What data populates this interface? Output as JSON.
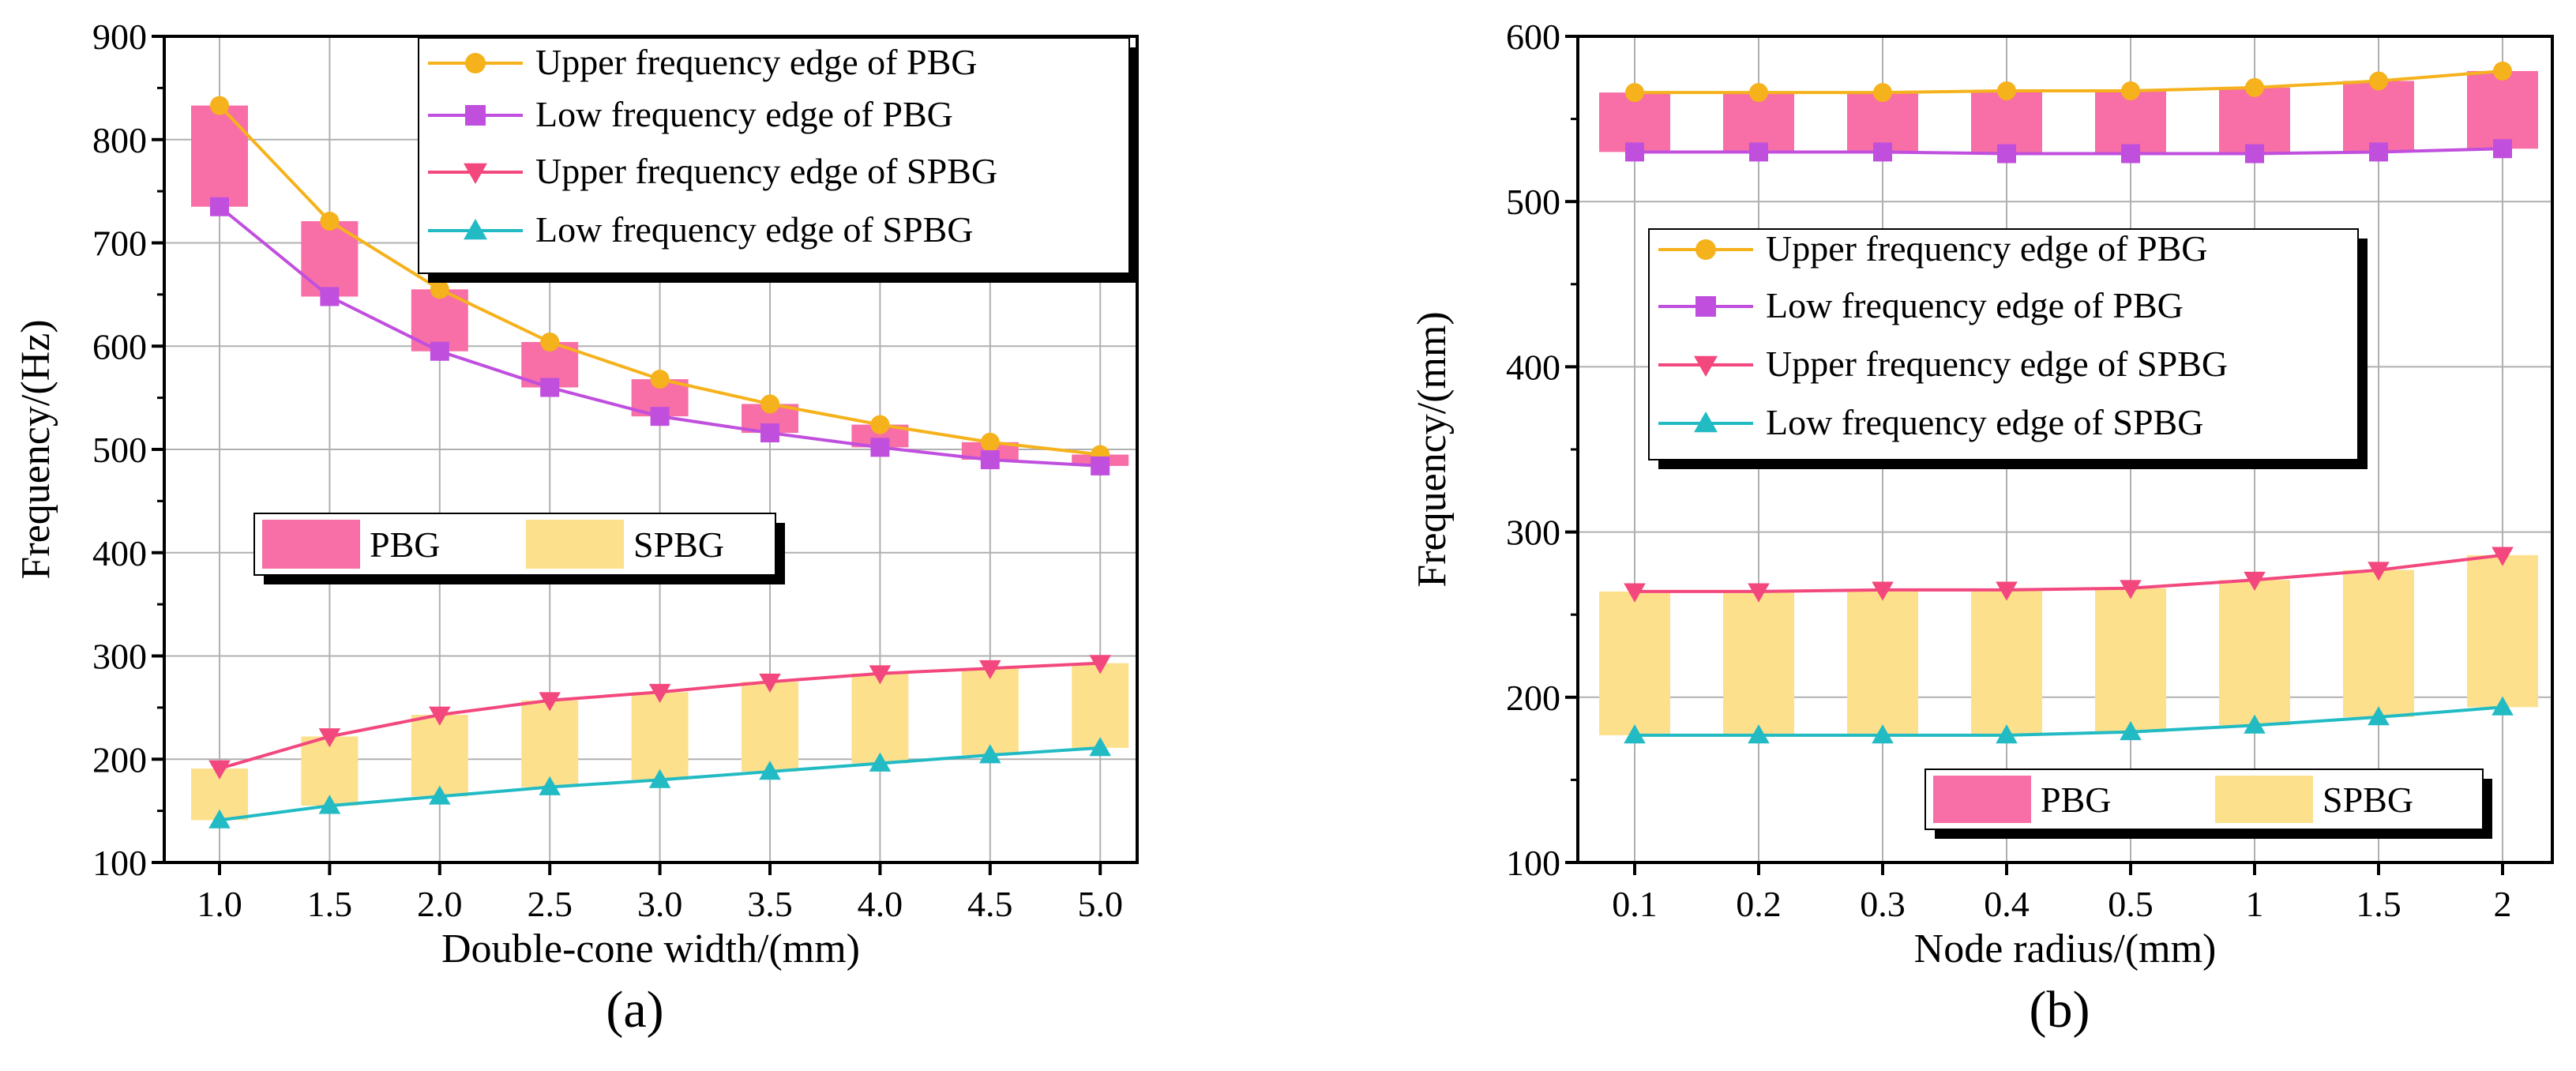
{
  "colors": {
    "upper_pbg": "#F5B21C",
    "low_pbg": "#C04FDE",
    "upper_spbg": "#F2487E",
    "low_spbg": "#22BBC4",
    "pbg_fill": "#F76FA6",
    "spbg_fill": "#FDE08C"
  },
  "chart_data": [
    {
      "panel": "(a)",
      "type": "line",
      "categories": [
        "1.0",
        "1.5",
        "2.0",
        "2.5",
        "3.0",
        "3.5",
        "4.0",
        "4.5",
        "5.0"
      ],
      "xlabel": "Double-cone width/(mm)",
      "ylabel": "Frequency/(Hz)",
      "ylim": [
        100,
        900
      ],
      "yticks": [
        "100",
        "200",
        "300",
        "400",
        "500",
        "600",
        "700",
        "800",
        "900"
      ],
      "grid": true,
      "series": [
        {
          "name": "Upper frequency edge of PBG",
          "key": "upper_pbg",
          "marker": "circle",
          "values": [
            833,
            721,
            655,
            604,
            568,
            544,
            524,
            507,
            495
          ]
        },
        {
          "name": "Low frequency edge of PBG",
          "key": "low_pbg",
          "marker": "square",
          "values": [
            735,
            648,
            595,
            560,
            532,
            516,
            502,
            490,
            484
          ]
        },
        {
          "name": "Upper frequency edge of SPBG",
          "key": "upper_spbg",
          "marker": "triangle-down",
          "values": [
            191,
            222,
            243,
            257,
            265,
            275,
            283,
            288,
            293
          ]
        },
        {
          "name": "Low frequency edge of SPBG",
          "key": "low_spbg",
          "marker": "triangle-up",
          "values": [
            141,
            155,
            164,
            173,
            180,
            188,
            196,
            204,
            211
          ]
        }
      ],
      "bands": {
        "pbg_label": "PBG",
        "spbg_label": "SPBG"
      },
      "band_legend_position": "middle-left"
    },
    {
      "panel": "(b)",
      "type": "line",
      "categories": [
        "0.1",
        "0.2",
        "0.3",
        "0.4",
        "0.5",
        "1",
        "1.5",
        "2"
      ],
      "xlabel": "Node radius/(mm)",
      "ylabel": "Frequency/(mm)",
      "ylim": [
        100,
        600
      ],
      "yticks": [
        "100",
        "200",
        "300",
        "400",
        "500",
        "600"
      ],
      "grid": true,
      "series": [
        {
          "name": "Upper frequency edge of PBG",
          "key": "upper_pbg",
          "marker": "circle",
          "values": [
            566,
            566,
            566,
            567,
            567,
            569,
            573,
            579
          ]
        },
        {
          "name": "Low frequency edge of PBG",
          "key": "low_pbg",
          "marker": "square",
          "values": [
            530,
            530,
            530,
            529,
            529,
            529,
            530,
            532
          ]
        },
        {
          "name": "Upper frequency edge of SPBG",
          "key": "upper_spbg",
          "marker": "triangle-down",
          "values": [
            264,
            264,
            265,
            265,
            266,
            271,
            277,
            286
          ]
        },
        {
          "name": "Low frequency edge of SPBG",
          "key": "low_spbg",
          "marker": "triangle-up",
          "values": [
            177,
            177,
            177,
            177,
            179,
            183,
            188,
            194
          ]
        }
      ],
      "bands": {
        "pbg_label": "PBG",
        "spbg_label": "SPBG"
      },
      "band_legend_position": "bottom-right"
    }
  ]
}
